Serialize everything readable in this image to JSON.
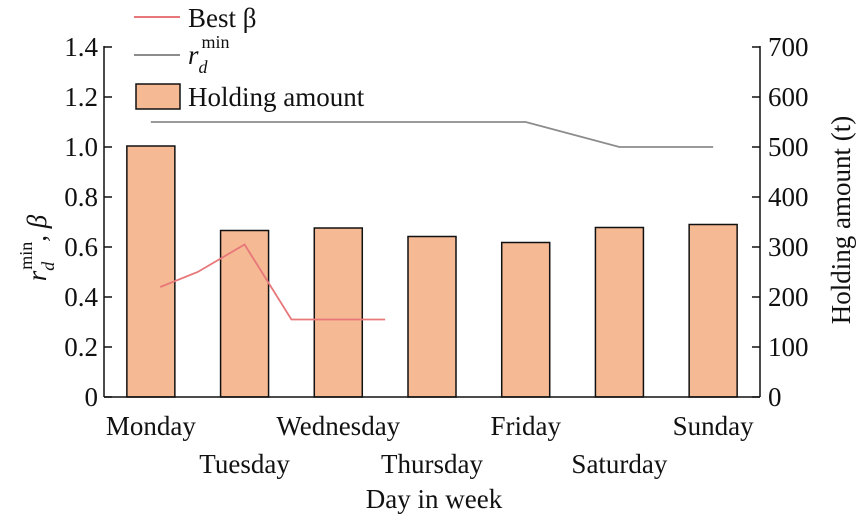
{
  "chart_data": {
    "type": "bar",
    "categories": [
      "Monday",
      "Tuesday",
      "Wednesday",
      "Thursday",
      "Friday",
      "Saturday",
      "Sunday"
    ],
    "xlabel": "Day in week",
    "ylabel_left": {
      "main": "r",
      "sub": "d",
      "sup": "min",
      "suffix": ", β"
    },
    "ylabel_right": "Holding amount (t)",
    "ylim_left": [
      0,
      1.4
    ],
    "ylim_right": [
      0,
      700
    ],
    "yticks_left": [
      "0",
      "0.2",
      "0.4",
      "0.6",
      "0.8",
      "1.0",
      "1.2",
      "1.4"
    ],
    "yticks_right": [
      "0",
      "100",
      "200",
      "300",
      "400",
      "500",
      "600",
      "700"
    ],
    "grid": false,
    "legend_position": "top-left",
    "series": [
      {
        "name": "Holding amount",
        "kind": "bar",
        "axis": "right",
        "color": "#f5b994",
        "values": [
          502,
          333,
          338,
          321,
          309,
          339,
          345
        ]
      },
      {
        "name_main": "r",
        "name_sub": "d",
        "name_sup": "min",
        "kind": "line",
        "axis": "left",
        "color": "#8c8c8c",
        "values": [
          1.1,
          1.1,
          1.1,
          1.1,
          1.1,
          1.0,
          1.0
        ]
      },
      {
        "name": "Best β",
        "kind": "line",
        "axis": "left",
        "color": "#e8777a",
        "x": [
          0.1,
          0.5,
          1.0,
          1.5,
          2.0,
          2.5
        ],
        "values": [
          0.44,
          0.5,
          0.61,
          0.31,
          0.31,
          0.31
        ]
      }
    ]
  }
}
